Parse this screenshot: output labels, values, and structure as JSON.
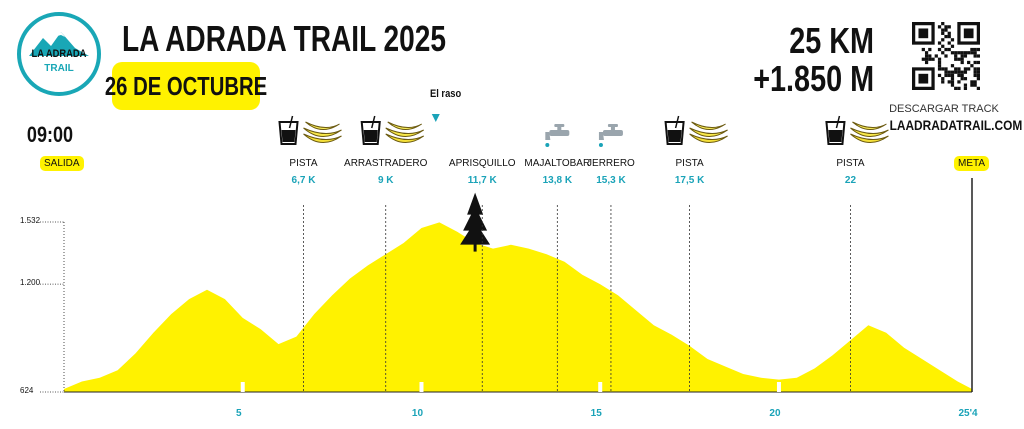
{
  "header": {
    "logo_line1": "LA ADRADA",
    "logo_line2": "TRAIL",
    "title": "LA ADRADA TRAIL 2025",
    "date": "26 DE OCTUBRE",
    "distance": "25 KM",
    "elevation_gain": "+1.850 M",
    "track_label": "DESCARGAR TRACK",
    "track_url": "LAADRADATRAIL.COM"
  },
  "start": {
    "time": "09:00",
    "label": "SALIDA"
  },
  "finish": {
    "label": "META"
  },
  "summit": {
    "label": "El raso",
    "icon": "tree-icon"
  },
  "checkpoints": [
    {
      "name": "PISTA",
      "km_label": "6,7 K",
      "km": 6.7,
      "icons": [
        "drink-glass-icon",
        "banana-icon"
      ]
    },
    {
      "name": "ARRASTRADERO",
      "km_label": "9 K",
      "km": 9.0,
      "icons": [
        "drink-glass-icon",
        "banana-icon"
      ]
    },
    {
      "name": "APRISQUILLO",
      "km_label": "11,7 K",
      "km": 11.7,
      "icons": []
    },
    {
      "name": "MAJALTOBAR",
      "km_label": "13,8 K",
      "km": 13.8,
      "icons": [
        "water-tap-icon"
      ]
    },
    {
      "name": "JERRERO",
      "km_label": "15,3 K",
      "km": 15.3,
      "icons": [
        "water-tap-icon"
      ]
    },
    {
      "name": "PISTA",
      "km_label": "17,5 K",
      "km": 17.5,
      "icons": [
        "drink-glass-icon",
        "banana-icon"
      ]
    },
    {
      "name": "PISTA",
      "km_label": "22",
      "km": 22.0,
      "icons": [
        "drink-glass-icon",
        "banana-icon"
      ]
    }
  ],
  "chart_data": {
    "type": "area",
    "y_ticks": [
      {
        "value": 1532,
        "label": "1.532"
      },
      {
        "value": 1200,
        "label": "1.200"
      },
      {
        "value": 624,
        "label": "624"
      }
    ],
    "x_ticks": [
      {
        "value": 5,
        "label": "5"
      },
      {
        "value": 10,
        "label": "10"
      },
      {
        "value": 15,
        "label": "15"
      },
      {
        "value": 20,
        "label": "20"
      },
      {
        "value": 25.4,
        "label": "25'4"
      }
    ],
    "xlim": [
      0,
      25.4
    ],
    "ylim": [
      624,
      1532
    ],
    "fill_color": "#fff200",
    "accent_color": "#1aa3b8",
    "series": [
      {
        "x": [
          0,
          0.5,
          1,
          1.5,
          2,
          2.5,
          3,
          3.5,
          4,
          4.5,
          5,
          5.5,
          6,
          6.5,
          7,
          7.5,
          8,
          8.5,
          9,
          9.5,
          10,
          10.5,
          11,
          11.5,
          12,
          12.5,
          13,
          13.5,
          14,
          14.5,
          15,
          15.5,
          16,
          16.5,
          17,
          17.5,
          18,
          18.5,
          19,
          19.5,
          20,
          20.5,
          21,
          21.5,
          22,
          22.5,
          23,
          23.5,
          24,
          24.5,
          25,
          25.4
        ],
        "y": [
          640,
          680,
          700,
          740,
          830,
          940,
          1040,
          1120,
          1170,
          1120,
          1020,
          960,
          880,
          920,
          1040,
          1140,
          1230,
          1300,
          1360,
          1420,
          1500,
          1530,
          1480,
          1420,
          1390,
          1410,
          1390,
          1360,
          1320,
          1250,
          1200,
          1140,
          1060,
          980,
          930,
          870,
          800,
          760,
          720,
          700,
          690,
          700,
          750,
          820,
          900,
          980,
          940,
          860,
          800,
          740,
          680,
          640
        ]
      }
    ]
  }
}
